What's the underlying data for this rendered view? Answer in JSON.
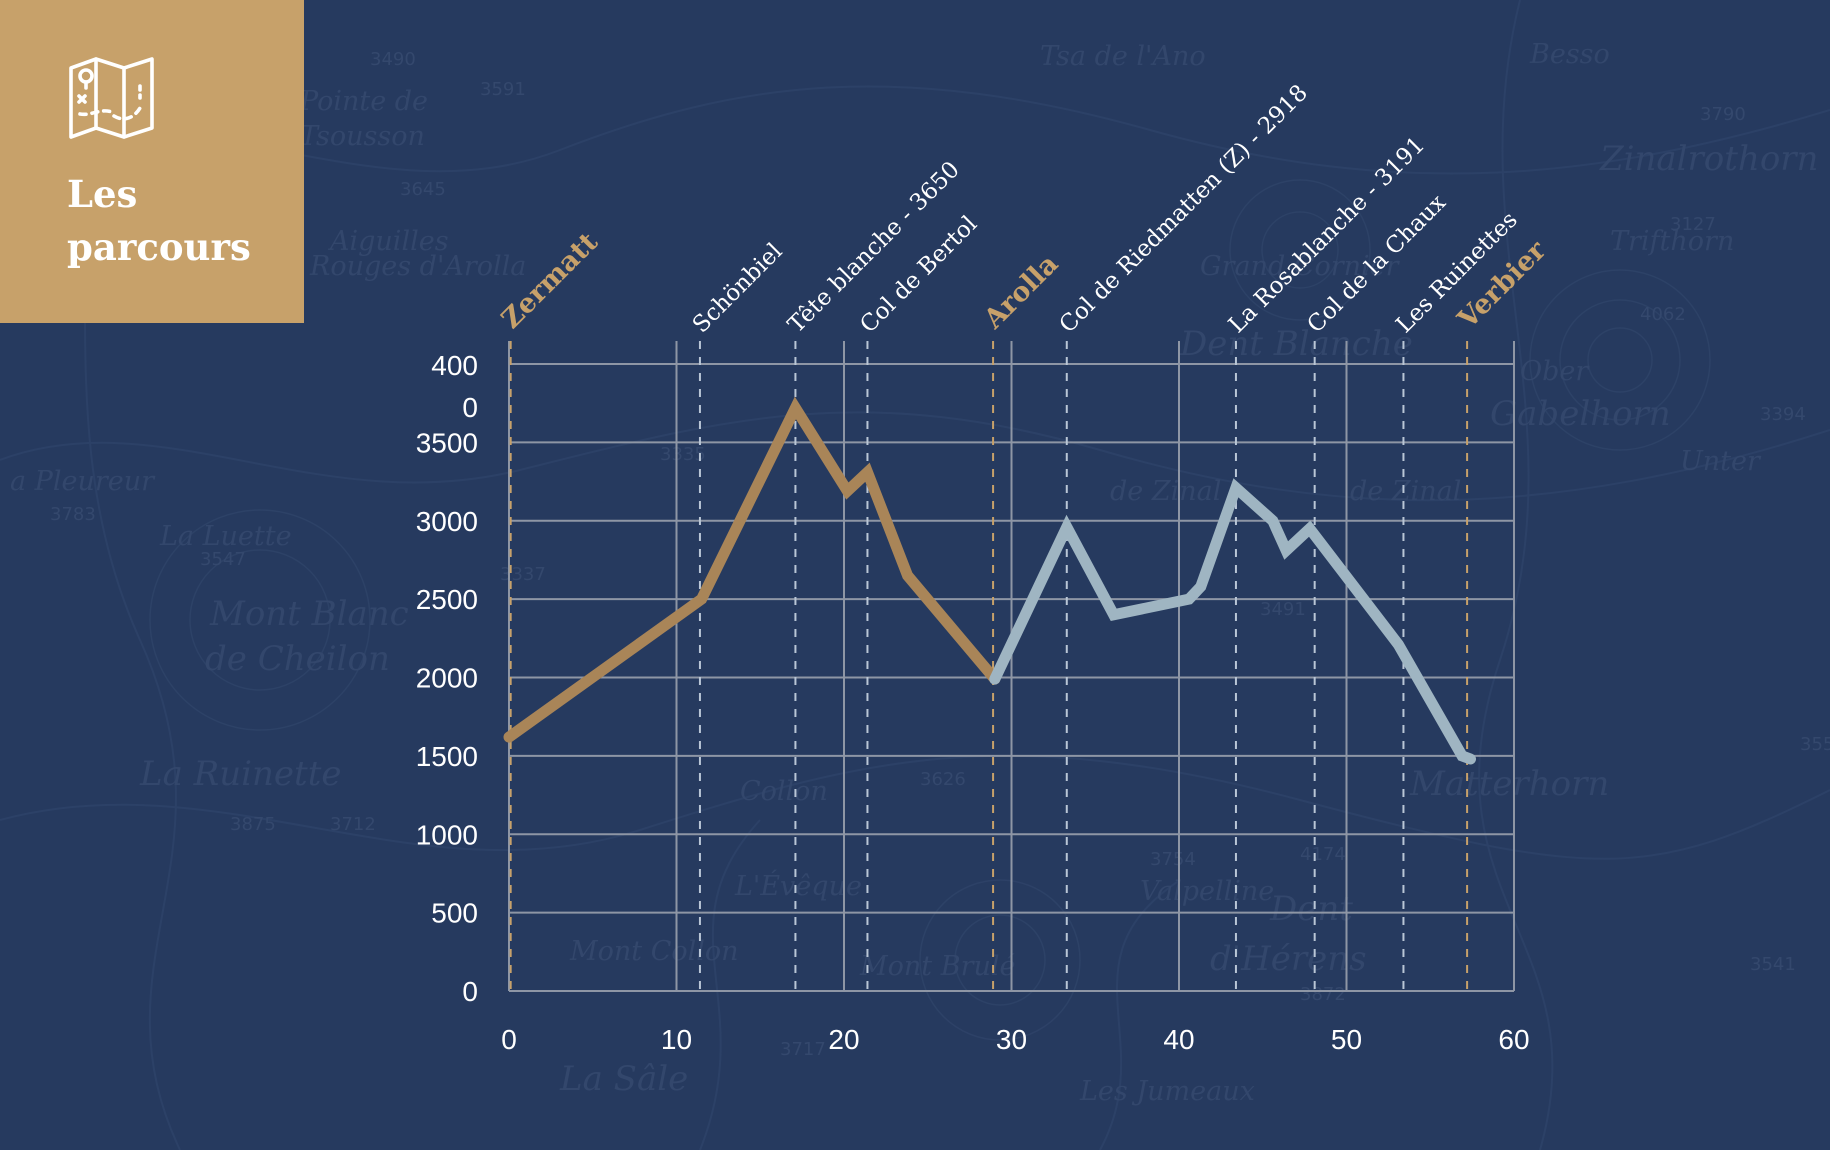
{
  "header": {
    "title": "Les parcours",
    "icon": "treasure-map-icon"
  },
  "colors": {
    "background": "#263a5f",
    "panel": "#c7a16a",
    "segment_1": "#a98558",
    "segment_2": "#9fb5c2",
    "grid": "#8e96a5",
    "main_marker": "#c7a16a",
    "intermediate_marker": "#b9c6d6"
  },
  "chart_data": {
    "type": "line",
    "title": "",
    "xlabel": "",
    "ylabel": "",
    "xlim": [
      0,
      60
    ],
    "ylim": [
      0,
      4000
    ],
    "x_ticks": [
      0,
      10,
      20,
      30,
      40,
      50,
      60
    ],
    "y_ticks": [
      0,
      500,
      1000,
      1500,
      2000,
      2500,
      3000,
      3500
    ],
    "y_top_tick_label_lines": [
      "400",
      "0"
    ],
    "grid": true,
    "series": [
      {
        "color": "#a98558",
        "points": [
          [
            0,
            1620
          ],
          [
            11.5,
            2500
          ],
          [
            17.1,
            3720
          ],
          [
            20.2,
            3190
          ],
          [
            21.4,
            3310
          ],
          [
            23.8,
            2650
          ],
          [
            29.0,
            1990
          ]
        ]
      },
      {
        "color": "#9fb5c2",
        "points": [
          [
            29.0,
            1990
          ],
          [
            33.3,
            2960
          ],
          [
            36.1,
            2400
          ],
          [
            40.6,
            2500
          ],
          [
            41.3,
            2580
          ],
          [
            43.4,
            3210
          ],
          [
            45.6,
            3000
          ],
          [
            46.4,
            2810
          ],
          [
            47.8,
            2950
          ],
          [
            53.1,
            2210
          ],
          [
            56.9,
            1500
          ],
          [
            57.4,
            1480
          ]
        ]
      }
    ],
    "waypoints": [
      {
        "label": "Zermatt",
        "x": 0.1,
        "main": true
      },
      {
        "label": "Schönbiel",
        "x": 11.4,
        "main": false
      },
      {
        "label": "Tête blanche - 3650",
        "x": 17.1,
        "main": false
      },
      {
        "label": "Col de Bertol",
        "x": 21.4,
        "main": false
      },
      {
        "label": "Arolla",
        "x": 28.9,
        "main": true
      },
      {
        "label": "Col de Riedmatten (Z) - 2918",
        "x": 33.3,
        "main": false
      },
      {
        "label": "La Rosablanche - 3191",
        "x": 43.4,
        "main": false
      },
      {
        "label": "Col de la Chaux",
        "x": 48.1,
        "main": false
      },
      {
        "label": "Les Ruinettes",
        "x": 53.4,
        "main": false
      },
      {
        "label": "Verbier",
        "x": 57.2,
        "main": true
      }
    ]
  }
}
